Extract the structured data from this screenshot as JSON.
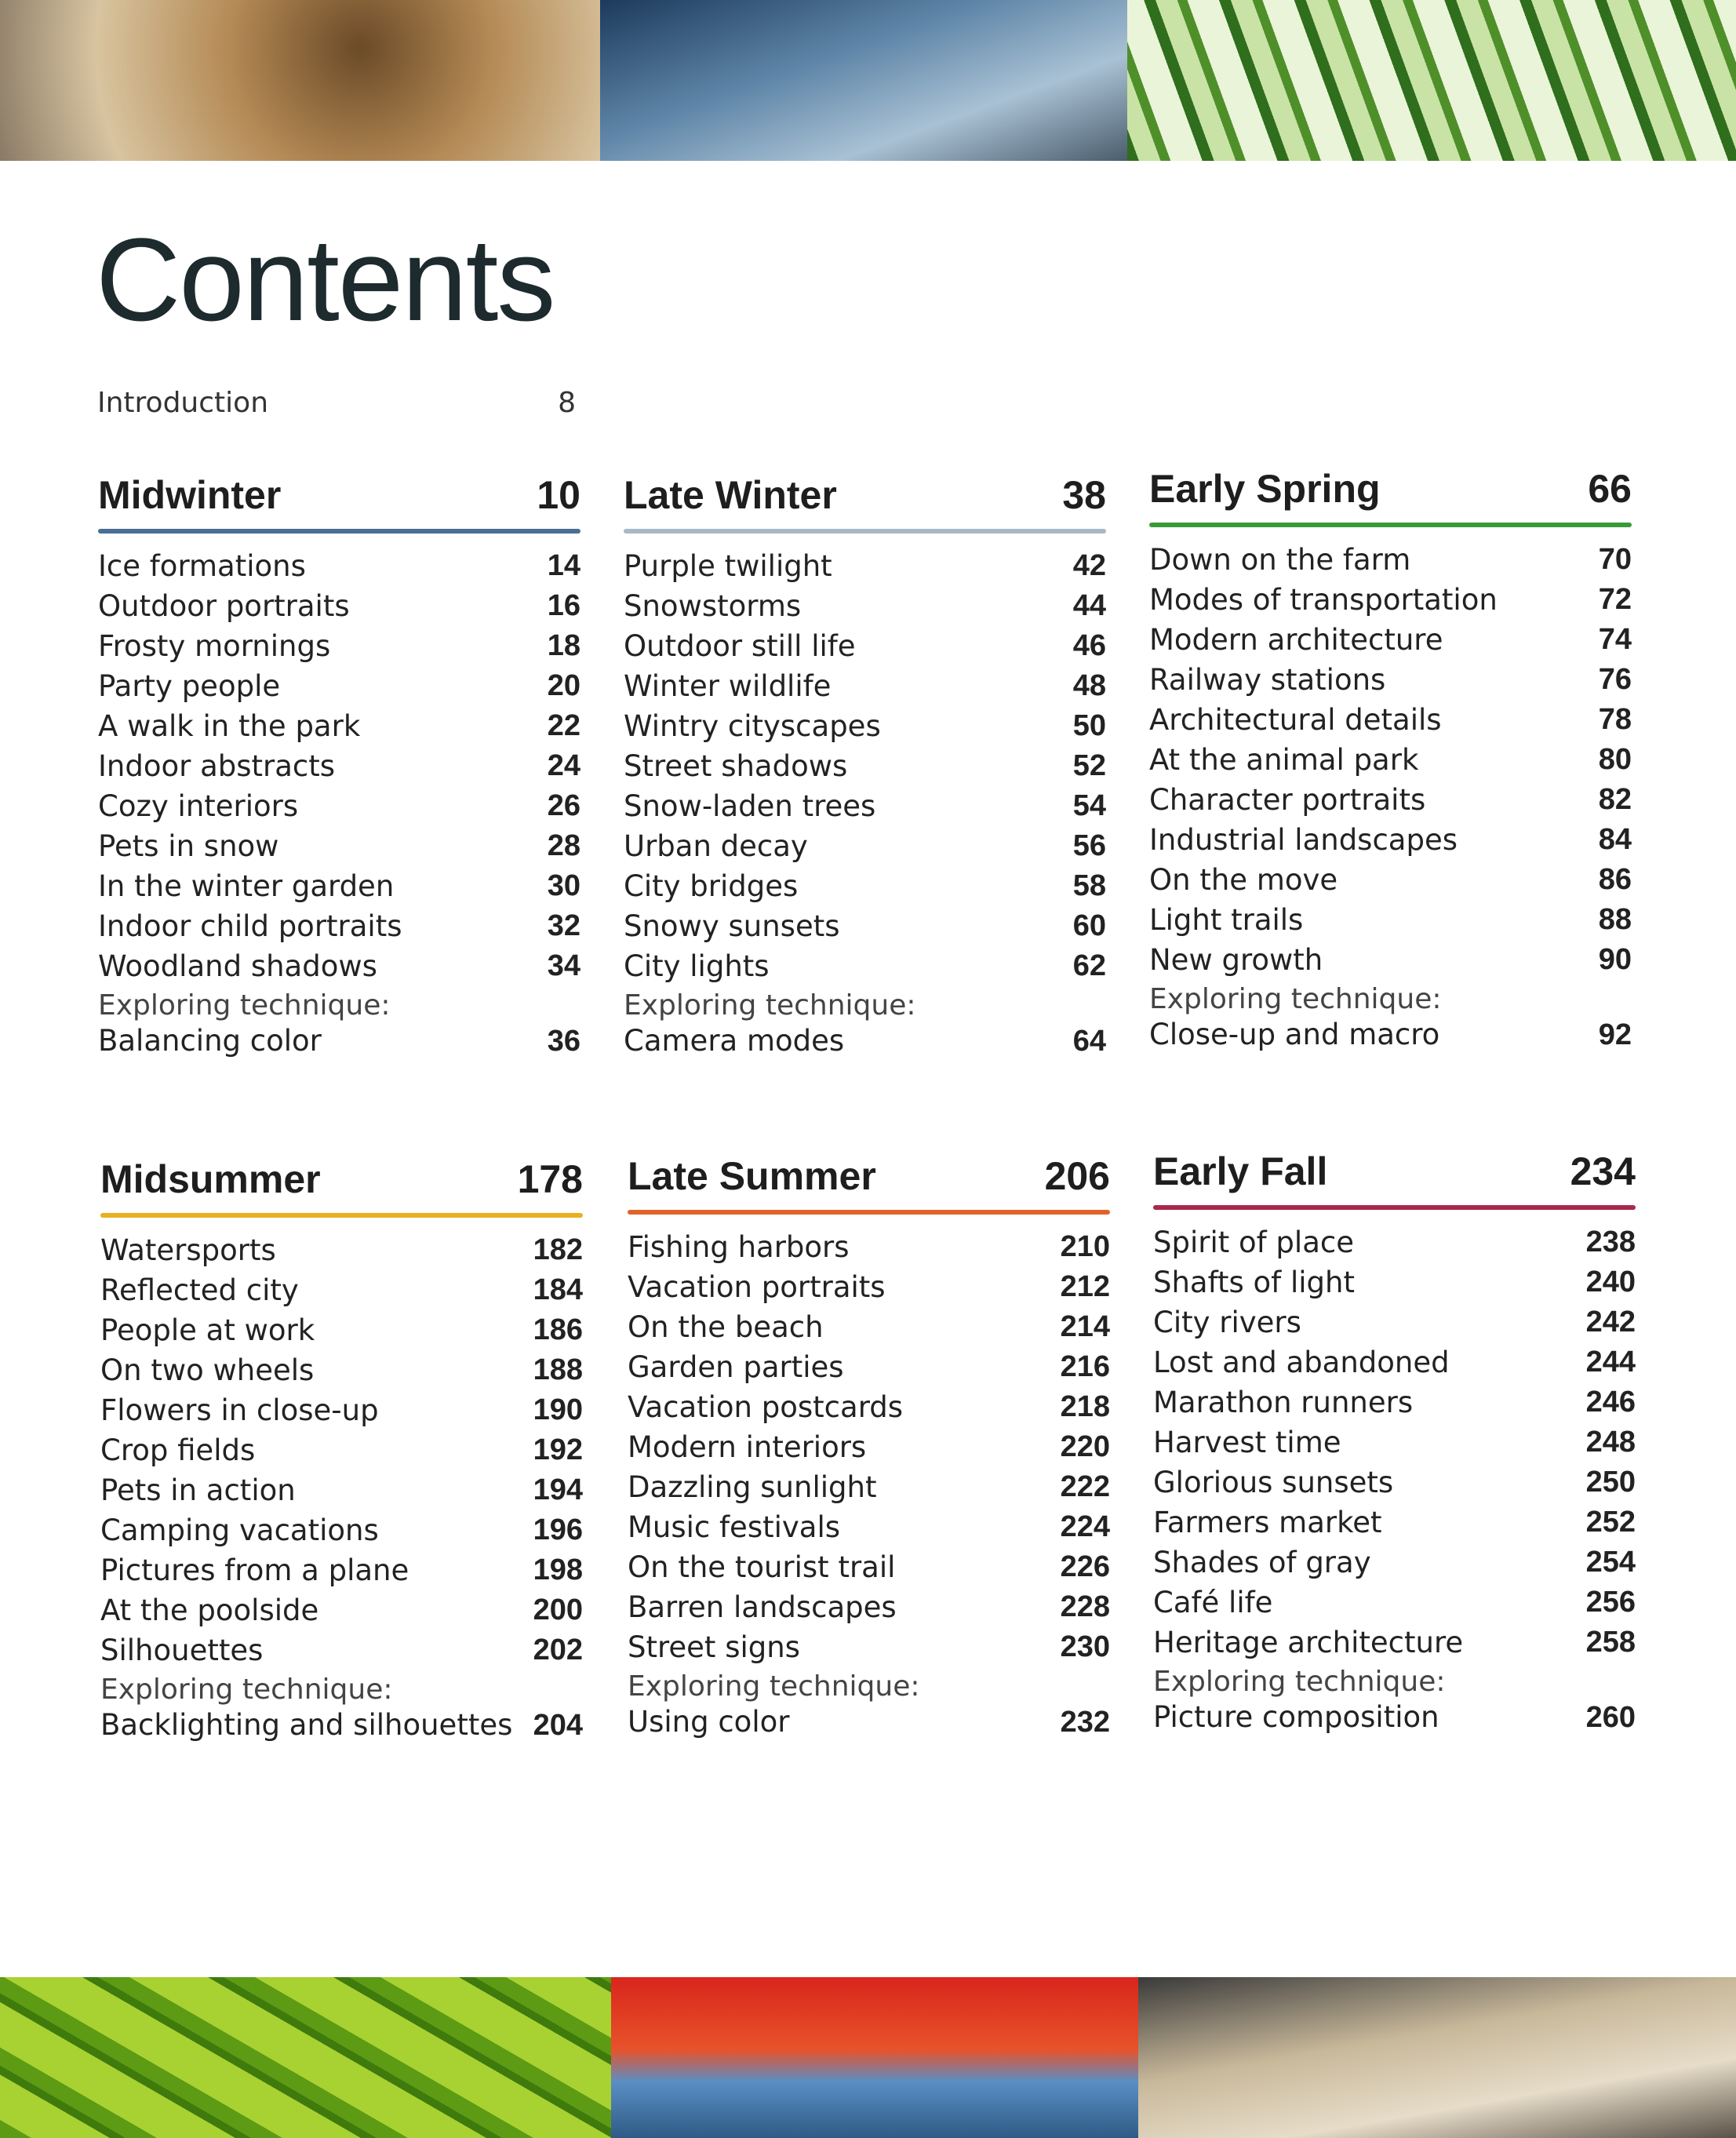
{
  "title": "Contents",
  "intro": {
    "label": "Introduction",
    "page": "8"
  },
  "sections": [
    {
      "name": "Midwinter",
      "page": "10",
      "color": "#4a6f94",
      "items": [
        [
          "Ice formations",
          "14"
        ],
        [
          "Outdoor portraits",
          "16"
        ],
        [
          "Frosty mornings",
          "18"
        ],
        [
          "Party people",
          "20"
        ],
        [
          "A walk in the park",
          "22"
        ],
        [
          "Indoor abstracts",
          "24"
        ],
        [
          "Cozy interiors",
          "26"
        ],
        [
          "Pets in snow",
          "28"
        ],
        [
          "In the winter garden",
          "30"
        ],
        [
          "Indoor child portraits",
          "32"
        ],
        [
          "Woodland shadows",
          "34"
        ]
      ],
      "technique_label": "Exploring technique:",
      "technique": "Balancing color",
      "technique_page": "36"
    },
    {
      "name": "Late Winter",
      "page": "38",
      "color": "#a9b8c6",
      "items": [
        [
          "Purple twilight",
          "42"
        ],
        [
          "Snowstorms",
          "44"
        ],
        [
          "Outdoor still life",
          "46"
        ],
        [
          "Winter wildlife",
          "48"
        ],
        [
          "Wintry cityscapes",
          "50"
        ],
        [
          "Street shadows",
          "52"
        ],
        [
          "Snow-laden trees",
          "54"
        ],
        [
          "Urban decay",
          "56"
        ],
        [
          "City bridges",
          "58"
        ],
        [
          "Snowy sunsets",
          "60"
        ],
        [
          "City lights",
          "62"
        ]
      ],
      "technique_label": "Exploring technique:",
      "technique": "Camera modes",
      "technique_page": "64"
    },
    {
      "name": "Early Spring",
      "page": "66",
      "color": "#3a9a3a",
      "items": [
        [
          "Down on the farm",
          "70"
        ],
        [
          "Modes of transportation",
          "72"
        ],
        [
          "Modern architecture",
          "74"
        ],
        [
          "Railway stations",
          "76"
        ],
        [
          "Architectural details",
          "78"
        ],
        [
          "At the animal park",
          "80"
        ],
        [
          "Character portraits",
          "82"
        ],
        [
          "Industrial landscapes",
          "84"
        ],
        [
          "On the move",
          "86"
        ],
        [
          "Light trails",
          "88"
        ],
        [
          "New growth",
          "90"
        ]
      ],
      "technique_label": "Exploring technique:",
      "technique": "Close-up and macro",
      "technique_page": "92"
    },
    {
      "name": "Midsummer",
      "page": "178",
      "color": "#e8b020",
      "items": [
        [
          "Watersports",
          "182"
        ],
        [
          "Reflected city",
          "184"
        ],
        [
          "People at work",
          "186"
        ],
        [
          "On two wheels",
          "188"
        ],
        [
          "Flowers in close-up",
          "190"
        ],
        [
          "Crop fields",
          "192"
        ],
        [
          "Pets in action",
          "194"
        ],
        [
          "Camping vacations",
          "196"
        ],
        [
          "Pictures from a plane",
          "198"
        ],
        [
          "At the poolside",
          "200"
        ],
        [
          "Silhouettes",
          "202"
        ]
      ],
      "technique_label": "Exploring technique:",
      "technique": "Backlighting and silhouettes",
      "technique_page": "204"
    },
    {
      "name": "Late Summer",
      "page": "206",
      "color": "#e0642a",
      "items": [
        [
          "Fishing harbors",
          "210"
        ],
        [
          "Vacation portraits",
          "212"
        ],
        [
          "On the beach",
          "214"
        ],
        [
          "Garden parties",
          "216"
        ],
        [
          "Vacation postcards",
          "218"
        ],
        [
          "Modern interiors",
          "220"
        ],
        [
          "Dazzling sunlight",
          "222"
        ],
        [
          "Music festivals",
          "224"
        ],
        [
          "On the tourist trail",
          "226"
        ],
        [
          "Barren landscapes",
          "228"
        ],
        [
          "Street signs",
          "230"
        ]
      ],
      "technique_label": "Exploring technique:",
      "technique": "Using color",
      "technique_page": "232"
    },
    {
      "name": "Early Fall",
      "page": "234",
      "color": "#a8284e",
      "items": [
        [
          "Spirit of place",
          "238"
        ],
        [
          "Shafts of light",
          "240"
        ],
        [
          "City rivers",
          "242"
        ],
        [
          "Lost and abandoned",
          "244"
        ],
        [
          "Marathon runners",
          "246"
        ],
        [
          "Harvest time",
          "248"
        ],
        [
          "Glorious sunsets",
          "250"
        ],
        [
          "Farmers market",
          "252"
        ],
        [
          "Shades of gray",
          "254"
        ],
        [
          "Café life",
          "256"
        ],
        [
          "Heritage architecture",
          "258"
        ]
      ],
      "technique_label": "Exploring technique:",
      "technique": "Picture composition",
      "technique_page": "260"
    }
  ]
}
